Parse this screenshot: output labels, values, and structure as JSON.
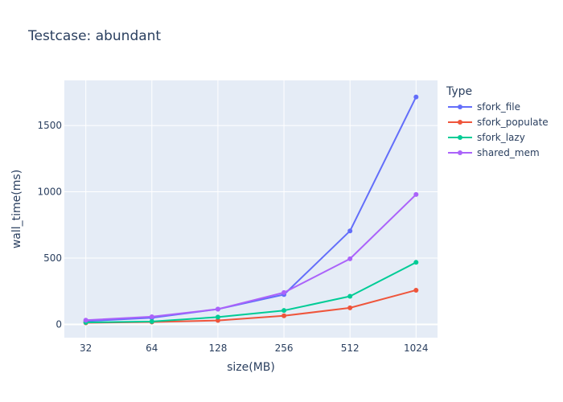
{
  "chart_data": {
    "type": "line",
    "title": "Testcase: abundant",
    "xlabel": "size(MB)",
    "ylabel": "wall_time(ms)",
    "x_scale": "log2",
    "x": [
      32,
      64,
      128,
      256,
      512,
      1024
    ],
    "x_tick_labels": [
      "32",
      "64",
      "128",
      "256",
      "512",
      "1024"
    ],
    "ylim": [
      -100,
      1840
    ],
    "y_ticks": [
      0,
      500,
      1000,
      1500
    ],
    "y_tick_labels": [
      "0",
      "500",
      "1000",
      "1500"
    ],
    "grid": true,
    "legend": {
      "title": "Type",
      "position": "right"
    },
    "background_color": "#e5ecf6",
    "series": [
      {
        "name": "sfork_file",
        "color": "#636efa",
        "values": [
          25,
          50,
          115,
          225,
          705,
          1715
        ]
      },
      {
        "name": "sfork_populate",
        "color": "#ef553b",
        "values": [
          12,
          18,
          30,
          65,
          125,
          258
        ]
      },
      {
        "name": "sfork_lazy",
        "color": "#00cc96",
        "values": [
          15,
          22,
          55,
          105,
          212,
          468
        ]
      },
      {
        "name": "shared_mem",
        "color": "#ab63fa",
        "values": [
          32,
          58,
          115,
          240,
          495,
          980
        ]
      }
    ]
  }
}
